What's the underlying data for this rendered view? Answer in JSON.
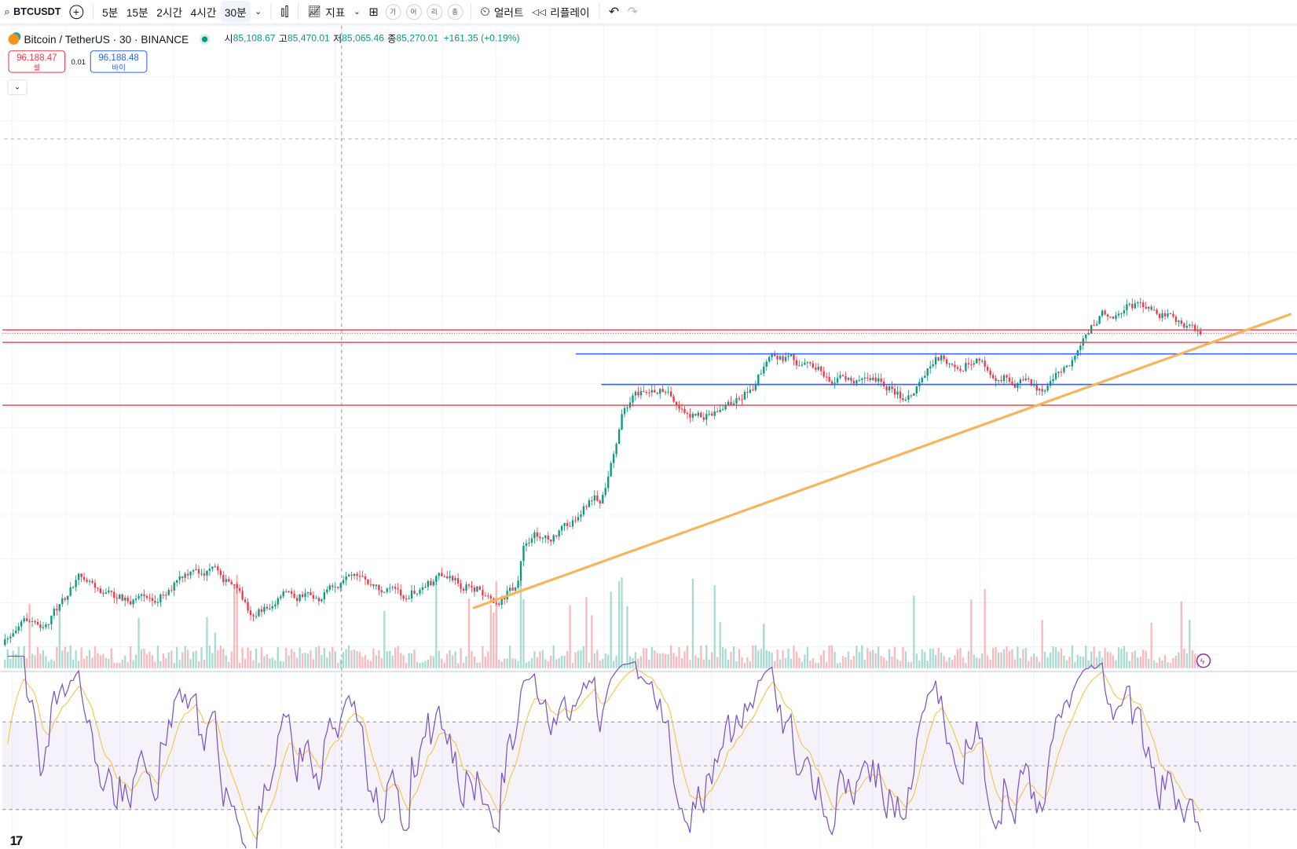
{
  "toolbar": {
    "symbol": "BTCUSDT",
    "intervals": [
      "5분",
      "15분",
      "2시간",
      "4시간",
      "30분"
    ],
    "active_interval": "30분",
    "indicators_label": "지표",
    "circle_buttons": [
      "기",
      "어",
      "리",
      "총"
    ],
    "alert_label": "얼러트",
    "replay_label": "리플레이"
  },
  "legend": {
    "title": "Bitcoin / TetherUS · 30 · BINANCE",
    "open_label": "시",
    "open": "85,108.67",
    "high_label": "고",
    "high": "85,470.01",
    "low_label": "저",
    "low": "85,065.46",
    "close_label": "종",
    "close": "85,270.01",
    "change": "+161.35 (+0.19%)"
  },
  "trade": {
    "sell_price": "96,188.47",
    "sell_label": "셀",
    "spread": "0.01",
    "buy_price": "96,188.48",
    "buy_label": "바이"
  },
  "colors": {
    "up": "#089981",
    "down": "#f23645",
    "support": "#f23645",
    "range": "#2962ff",
    "trend": "#f7b55a",
    "rsi": "#7e57c2",
    "rsi_ma": "#f5c242"
  }
}
